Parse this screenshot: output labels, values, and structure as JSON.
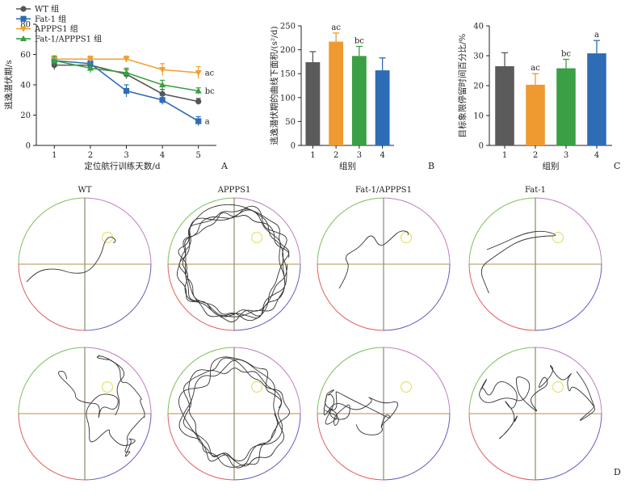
{
  "chart_data": [
    {
      "panel": "A",
      "type": "line",
      "xlabel": "定位航行训练天数/d",
      "ylabel": "逃逸潜伏期/s",
      "x": [
        1,
        2,
        3,
        4,
        5
      ],
      "xlim": [
        0.5,
        5.5
      ],
      "ylim": [
        0,
        80
      ],
      "yticks": [
        0,
        20,
        40,
        60,
        80
      ],
      "legend_position": "top-left",
      "series": [
        {
          "name": "WT 组",
          "color": "#555555",
          "marker": "circle",
          "values": [
            53,
            53,
            47,
            34,
            29
          ],
          "errors": [
            3,
            2,
            3,
            3,
            2
          ],
          "sig": ""
        },
        {
          "name": "Fat-1 组",
          "color": "#2e6db5",
          "marker": "square",
          "values": [
            56,
            54,
            36,
            30,
            16
          ],
          "errors": [
            3,
            2,
            4,
            3,
            3
          ],
          "sig": "a"
        },
        {
          "name": "APPPS1 组",
          "color": "#f0a030",
          "marker": "triangle-down",
          "values": [
            57,
            57,
            57,
            50,
            48
          ],
          "errors": [
            2,
            2,
            2,
            4,
            4
          ],
          "sig": "ac"
        },
        {
          "name": "Fat-1/APPPS1 组",
          "color": "#3aa040",
          "marker": "triangle-up",
          "values": [
            56,
            51,
            48,
            40,
            36
          ],
          "errors": [
            3,
            3,
            3,
            3,
            2
          ],
          "sig": "bc"
        }
      ]
    },
    {
      "panel": "B",
      "type": "bar",
      "xlabel": "组别",
      "ylabel": "逃逸潜伏期的曲线下面积/(s²/d)",
      "categories": [
        "1",
        "2",
        "3",
        "4"
      ],
      "values": [
        174,
        217,
        187,
        157
      ],
      "errors": [
        22,
        18,
        20,
        26
      ],
      "sig": [
        "",
        "ac",
        "bc",
        ""
      ],
      "colors": [
        "#5b5b5b",
        "#ef9a30",
        "#3a9f45",
        "#2e6db5"
      ],
      "ylim": [
        0,
        250
      ],
      "yticks": [
        0,
        50,
        100,
        150,
        200,
        250
      ]
    },
    {
      "panel": "C",
      "type": "bar",
      "xlabel": "组别",
      "ylabel": "目标象限停留时间百分比/%",
      "categories": [
        "1",
        "2",
        "3",
        "4"
      ],
      "values": [
        26.5,
        20.3,
        25.8,
        30.8
      ],
      "errors": [
        4.5,
        3.7,
        3.0,
        4.3
      ],
      "sig": [
        "",
        "ac",
        "bc",
        "a"
      ],
      "colors": [
        "#5b5b5b",
        "#ef9a30",
        "#3a9f45",
        "#2e6db5"
      ],
      "ylim": [
        0,
        40
      ],
      "yticks": [
        0,
        10,
        20,
        30,
        40
      ]
    }
  ],
  "panel_d": {
    "label": "D",
    "group_titles": [
      "WT",
      "APPPS1",
      "Fat-1/APPPS1",
      "Fat-1"
    ],
    "quadrant_colors": [
      "#7fbf5f",
      "#c07fc0",
      "#e06060",
      "#6060c0"
    ],
    "cross_colors": {
      "vertical": "#7a7050",
      "horizontal": "#b09050"
    },
    "platform_color": "#e8e070"
  }
}
